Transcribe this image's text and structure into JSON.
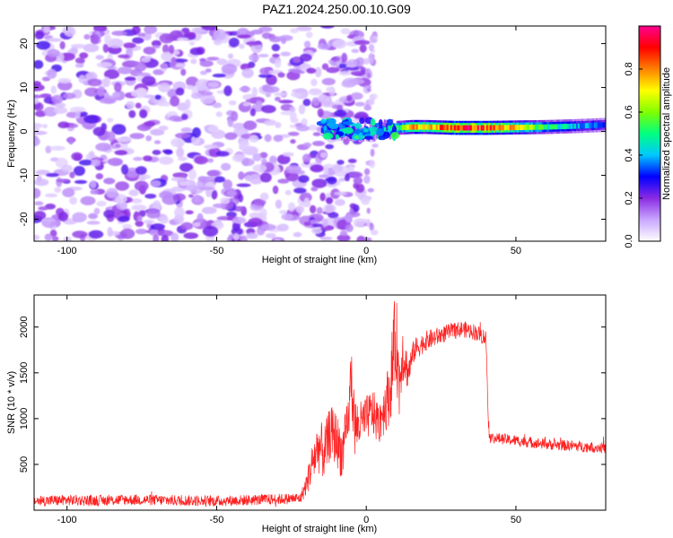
{
  "title": "PAZ1.2024.250.00.10.G09",
  "chart_data": [
    {
      "type": "heatmap",
      "name": "spectrogram",
      "xlabel": "Height of straight line (km)",
      "ylabel": "Frequency (Hz)",
      "xlim": [
        -111,
        80
      ],
      "ylim": [
        -25,
        24
      ],
      "xticks": [
        -100,
        -50,
        0,
        50
      ],
      "xtick_labels": [
        "-100",
        "-50",
        "0",
        "50"
      ],
      "yticks": [
        -20,
        -10,
        0,
        10,
        20
      ],
      "ytick_labels": [
        "-20",
        "-10",
        "0",
        "10",
        "20"
      ],
      "colorbar": {
        "label": "Normalized spectral amplitude",
        "range": [
          0,
          1
        ],
        "ticks": [
          0.0,
          0.2,
          0.4,
          0.6,
          0.8
        ],
        "tick_labels": [
          "0.0",
          "0.2",
          "0.4",
          "0.6",
          "0.8"
        ],
        "colors": [
          "#ffffff",
          "#c9a6ff",
          "#8a2be2",
          "#0000ff",
          "#00c8ff",
          "#00ff80",
          "#80ff00",
          "#ffff00",
          "#ff8000",
          "#ff0000",
          "#ff0090"
        ]
      },
      "noise_region_x": [
        -111,
        0
      ],
      "noise_amplitude_range": [
        0.05,
        0.25
      ],
      "transition_x": [
        -15,
        10
      ],
      "signal_band": {
        "x": [
          -15,
          -10,
          -5,
          0,
          5,
          10,
          15,
          20,
          30,
          40,
          50,
          60,
          70,
          80
        ],
        "freq_center": [
          0.5,
          0.2,
          0.0,
          -0.2,
          0.2,
          0.8,
          1.0,
          1.0,
          0.8,
          0.8,
          0.9,
          1.0,
          1.2,
          1.5
        ],
        "amplitude": [
          0.25,
          0.3,
          0.35,
          0.35,
          0.4,
          0.5,
          0.75,
          0.7,
          0.9,
          0.85,
          0.7,
          0.5,
          0.4,
          0.35
        ]
      }
    },
    {
      "type": "line",
      "name": "snr",
      "xlabel": "Height of straight line (km)",
      "ylabel": "SNR (10 * v/v)",
      "xlim": [
        -111,
        80
      ],
      "ylim": [
        0,
        2350
      ],
      "xticks": [
        -100,
        -50,
        0,
        50
      ],
      "xtick_labels": [
        "-100",
        "-50",
        "0",
        "50"
      ],
      "yticks": [
        500,
        1000,
        1500,
        2000
      ],
      "ytick_labels": [
        "500",
        "1000",
        "1500",
        "2000"
      ],
      "line_color": "#ff2020",
      "series": [
        {
          "x": [
            -111,
            -100,
            -90,
            -80,
            -70,
            -60,
            -50,
            -40,
            -30,
            -22,
            -20,
            -18,
            -16,
            -14,
            -12,
            -10,
            -8,
            -6,
            -5,
            -4,
            -2,
            0,
            2,
            4,
            6,
            8,
            9,
            10,
            11,
            12,
            14,
            16,
            18,
            20,
            24,
            28,
            32,
            36,
            39,
            40,
            41,
            42,
            45,
            50,
            55,
            60,
            65,
            70,
            75,
            80
          ],
          "y": [
            100,
            110,
            105,
            115,
            110,
            105,
            100,
            110,
            120,
            130,
            280,
            520,
            700,
            620,
            850,
            780,
            600,
            980,
            1500,
            900,
            940,
            1000,
            1080,
            950,
            1130,
            1300,
            1700,
            1900,
            1350,
            1750,
            1500,
            1750,
            1800,
            1850,
            1900,
            1950,
            1980,
            1950,
            1900,
            1880,
            800,
            790,
            780,
            760,
            740,
            720,
            710,
            700,
            690,
            680
          ],
          "noise_amplitude": [
            60,
            60,
            60,
            60,
            60,
            60,
            60,
            60,
            60,
            60,
            120,
            250,
            300,
            300,
            300,
            300,
            280,
            280,
            400,
            350,
            250,
            250,
            250,
            250,
            300,
            350,
            500,
            500,
            400,
            350,
            180,
            130,
            120,
            110,
            100,
            90,
            90,
            90,
            90,
            90,
            70,
            60,
            60,
            60,
            60,
            60,
            60,
            60,
            60,
            60
          ]
        }
      ]
    }
  ]
}
